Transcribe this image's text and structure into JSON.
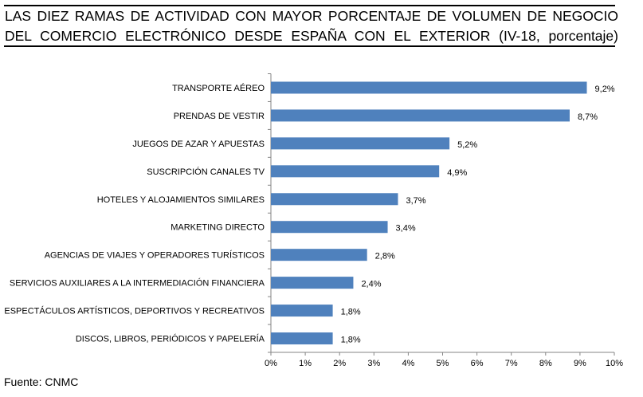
{
  "chart_data": {
    "type": "bar",
    "orientation": "horizontal",
    "title_lines": [
      "LAS DIEZ RAMAS DE ACTIVIDAD CON MAYOR PORCENTAJE DE VOLUMEN DE NEGOCIO",
      "DEL COMERCIO ELECTRÓNICO DESDE ESPAÑA CON EL EXTERIOR (IV-18, porcentaje)"
    ],
    "categories": [
      "TRANSPORTE AÉREO",
      "PRENDAS DE VESTIR",
      "JUEGOS DE AZAR Y APUESTAS",
      "SUSCRIPCIÓN CANALES TV",
      "HOTELES  Y ALOJAMIENTOS SIMILARES",
      "MARKETING DIRECTO",
      "AGENCIAS DE VIAJES Y OPERADORES TURÍSTICOS",
      "SERVICIOS AUXILIARES A LA INTERMEDIACIÓN FINANCIERA",
      "ESPECTÁCULOS ARTÍSTICOS, DEPORTIVOS Y RECREATIVOS",
      "DISCOS, LIBROS, PERIÓDICOS Y PAPELERÍA"
    ],
    "values": [
      9.2,
      8.7,
      5.2,
      4.9,
      3.7,
      3.4,
      2.8,
      2.4,
      1.8,
      1.8
    ],
    "value_labels": [
      "9,2%",
      "8,7%",
      "5,2%",
      "4,9%",
      "3,7%",
      "3,4%",
      "2,8%",
      "2,4%",
      "1,8%",
      "1,8%"
    ],
    "xlim": [
      0,
      10
    ],
    "xticks": [
      "0%",
      "1%",
      "2%",
      "3%",
      "4%",
      "5%",
      "6%",
      "7%",
      "8%",
      "9%",
      "10%"
    ],
    "xlabel": "",
    "ylabel": "",
    "grid": false,
    "bar_color": "#4f81bd",
    "source": "Fuente: CNMC"
  }
}
